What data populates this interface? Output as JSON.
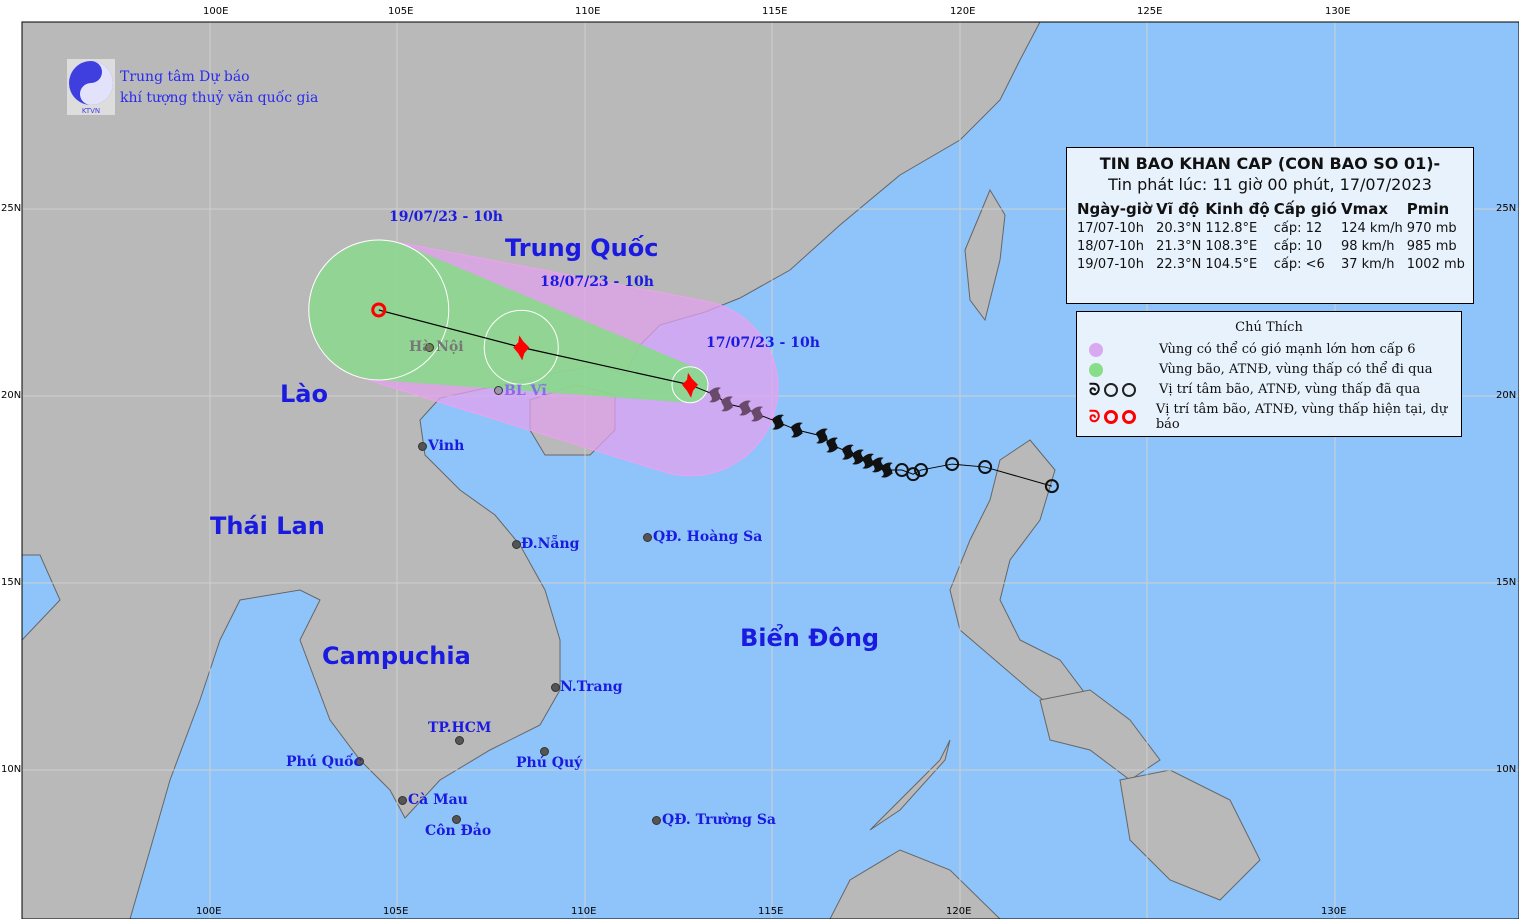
{
  "header": {
    "org_line1": "Trung tâm Dự báo",
    "org_line2": "khí tượng thuỷ văn quốc gia",
    "logo_text": "KTVN"
  },
  "axes": {
    "top_ticks": [
      "100E",
      "105E",
      "110E",
      "115E",
      "120E",
      "125E",
      "130E"
    ],
    "bottom_ticks": [
      "100E",
      "105E",
      "110E",
      "115E",
      "120E",
      "130E"
    ],
    "left_ticks": [
      "25N",
      "20N",
      "15N",
      "10N"
    ],
    "right_ticks": [
      "25N",
      "20N",
      "15N",
      "10N"
    ]
  },
  "colors": {
    "land": "#b9b9b9",
    "sea": "#8fc4fa",
    "danger_zone": "#e2a2ee",
    "track_zone": "#7fe07f",
    "forecast": "#ff0000",
    "past": "#111111"
  },
  "countries": {
    "china": "Trung Quốc",
    "laos": "Lào",
    "thailand": "Thái Lan",
    "cambodia": "Campuchia",
    "sea": "Biển Đông"
  },
  "places": {
    "hanoi": "Hà Nội",
    "blvi": "BL Vĩ",
    "vinh": "Vinh",
    "danang": "Đ.Nẵng",
    "hoangsa": "QĐ. Hoàng Sa",
    "nhatrang": "N.Trang",
    "tphcm": "TP.HCM",
    "phuquoc": "Phú Quốc",
    "phuquy": "Phú Quý",
    "camau": "Cà Mau",
    "condao": "Côn Đảo",
    "truongsa": "QĐ. Trường Sa"
  },
  "info": {
    "title": "TIN BAO KHAN CAP (CON BAO SO 01)-",
    "issued": "Tin phát lúc: 11 giờ 00 phút, 17/07/2023",
    "columns": [
      "Ngày-giờ",
      "Vĩ độ",
      "Kinh độ",
      "Cấp gió",
      "Vmax",
      "Pmin"
    ],
    "rows": [
      [
        "17/07-10h",
        "20.3°N",
        "112.8°E",
        "cấp: 12",
        "124 km/h",
        "970 mb"
      ],
      [
        "18/07-10h",
        "21.3°N",
        "108.3°E",
        "cấp: 10",
        "98 km/h",
        "985 mb"
      ],
      [
        "19/07-10h",
        "22.3°N",
        "104.5°E",
        "cấp: <6",
        "37 km/h",
        "1002 mb"
      ]
    ]
  },
  "legend": {
    "title": "Chú Thích",
    "items": [
      {
        "label": "Vùng có thể có gió mạnh lớn hơn cấp 6",
        "icon": "purple-circle"
      },
      {
        "label": "Vùng bão, ATNĐ, vùng thấp có thể đi qua",
        "icon": "green-circle"
      },
      {
        "label": "Vị trí tâm bão, ATNĐ, vùng thấp đã qua",
        "icon": "black-storm-symbols"
      },
      {
        "label": "Vị trí tâm bão, ATNĐ, vùng thấp hiện tại, dự báo",
        "icon": "red-storm-symbols"
      }
    ]
  },
  "forecast": [
    {
      "label": "17/07/23 - 10h",
      "lon": 112.8,
      "lat": 20.3,
      "type": "storm"
    },
    {
      "label": "18/07/23 - 10h",
      "lon": 108.3,
      "lat": 21.3,
      "type": "storm"
    },
    {
      "label": "19/07/23 - 10h",
      "lon": 104.5,
      "lat": 22.3,
      "type": "low"
    }
  ],
  "past_track": [
    [
      113.47,
      20.03,
      "storm"
    ],
    [
      113.79,
      19.79,
      "storm"
    ],
    [
      114.27,
      19.68,
      "storm"
    ],
    [
      114.59,
      19.52,
      "storm"
    ],
    [
      115.15,
      19.3,
      "storm"
    ],
    [
      115.65,
      19.09,
      "storm"
    ],
    [
      116.32,
      18.93,
      "storm"
    ],
    [
      116.59,
      18.69,
      "storm"
    ],
    [
      117.01,
      18.5,
      "storm"
    ],
    [
      117.28,
      18.37,
      "storm"
    ],
    [
      117.55,
      18.26,
      "storm"
    ],
    [
      117.81,
      18.16,
      "storm"
    ],
    [
      118.05,
      18.02,
      "storm"
    ],
    [
      118.45,
      18.02,
      "low"
    ],
    [
      118.75,
      17.91,
      "low"
    ],
    [
      118.96,
      18.02,
      "low"
    ],
    [
      119.79,
      18.18,
      "low"
    ],
    [
      120.67,
      18.1,
      "low"
    ],
    [
      122.45,
      17.59,
      "low"
    ]
  ]
}
